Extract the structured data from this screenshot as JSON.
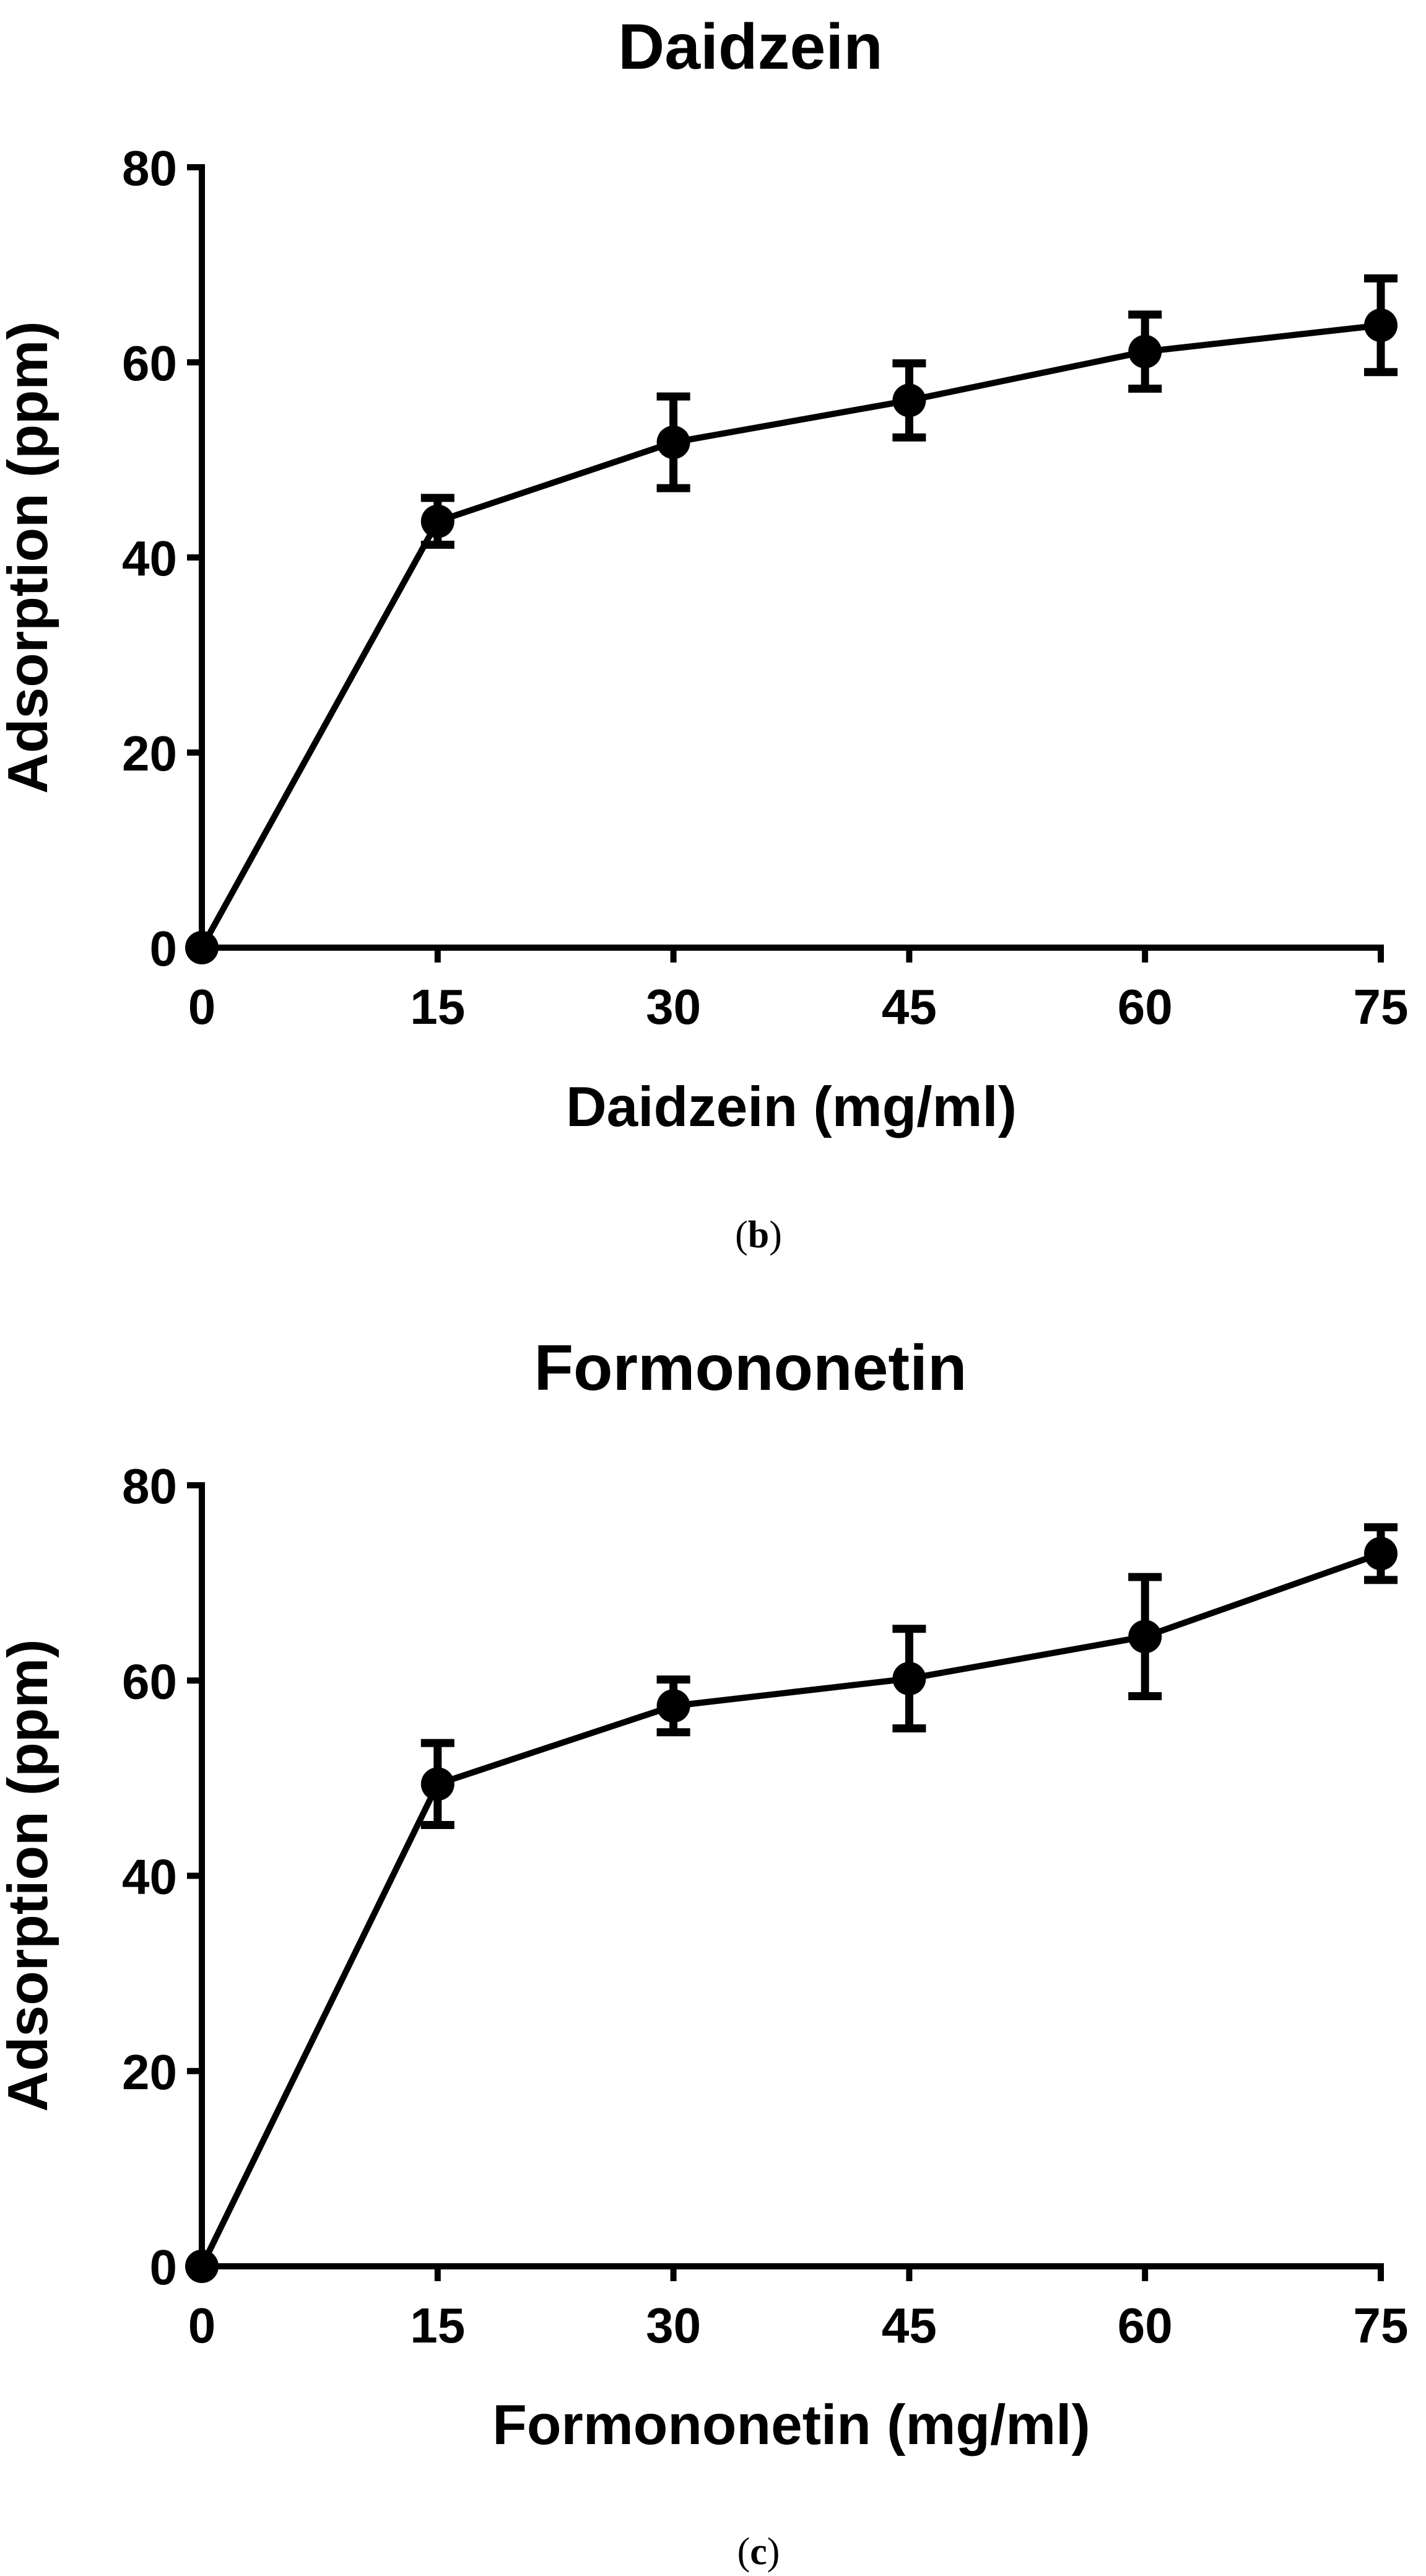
{
  "chart_data": [
    {
      "type": "line",
      "title": "Daidzein",
      "xlabel": "Daidzein (mg/ml)",
      "ylabel": "Adsorption (ppm)",
      "panel_label": {
        "open": "(",
        "letter": "b",
        "close": ")"
      },
      "xlim": [
        0,
        75
      ],
      "ylim": [
        0,
        80
      ],
      "xticks": [
        0,
        15,
        30,
        45,
        60,
        75
      ],
      "yticks": [
        0,
        20,
        40,
        60,
        80
      ],
      "x": [
        0,
        15,
        30,
        45,
        60,
        75
      ],
      "y": [
        0,
        43.7,
        51.8,
        56.1,
        61.1,
        63.8
      ],
      "error": [
        0,
        2.4,
        4.7,
        3.8,
        3.8,
        4.8
      ]
    },
    {
      "type": "line",
      "title": "Formononetin",
      "xlabel": "Formononetin (mg/ml)",
      "ylabel": "Adsorption (ppm)",
      "panel_label": {
        "open": "(",
        "letter": "c",
        "close": ")"
      },
      "xlim": [
        0,
        75
      ],
      "ylim": [
        0,
        80
      ],
      "xticks": [
        0,
        15,
        30,
        45,
        60,
        75
      ],
      "yticks": [
        0,
        20,
        40,
        60,
        80
      ],
      "x": [
        0,
        15,
        30,
        45,
        60,
        75
      ],
      "y": [
        0,
        49.4,
        57.4,
        60.2,
        64.5,
        73.0
      ],
      "error": [
        0,
        4.2,
        2.7,
        5.1,
        6.1,
        2.7
      ]
    }
  ]
}
